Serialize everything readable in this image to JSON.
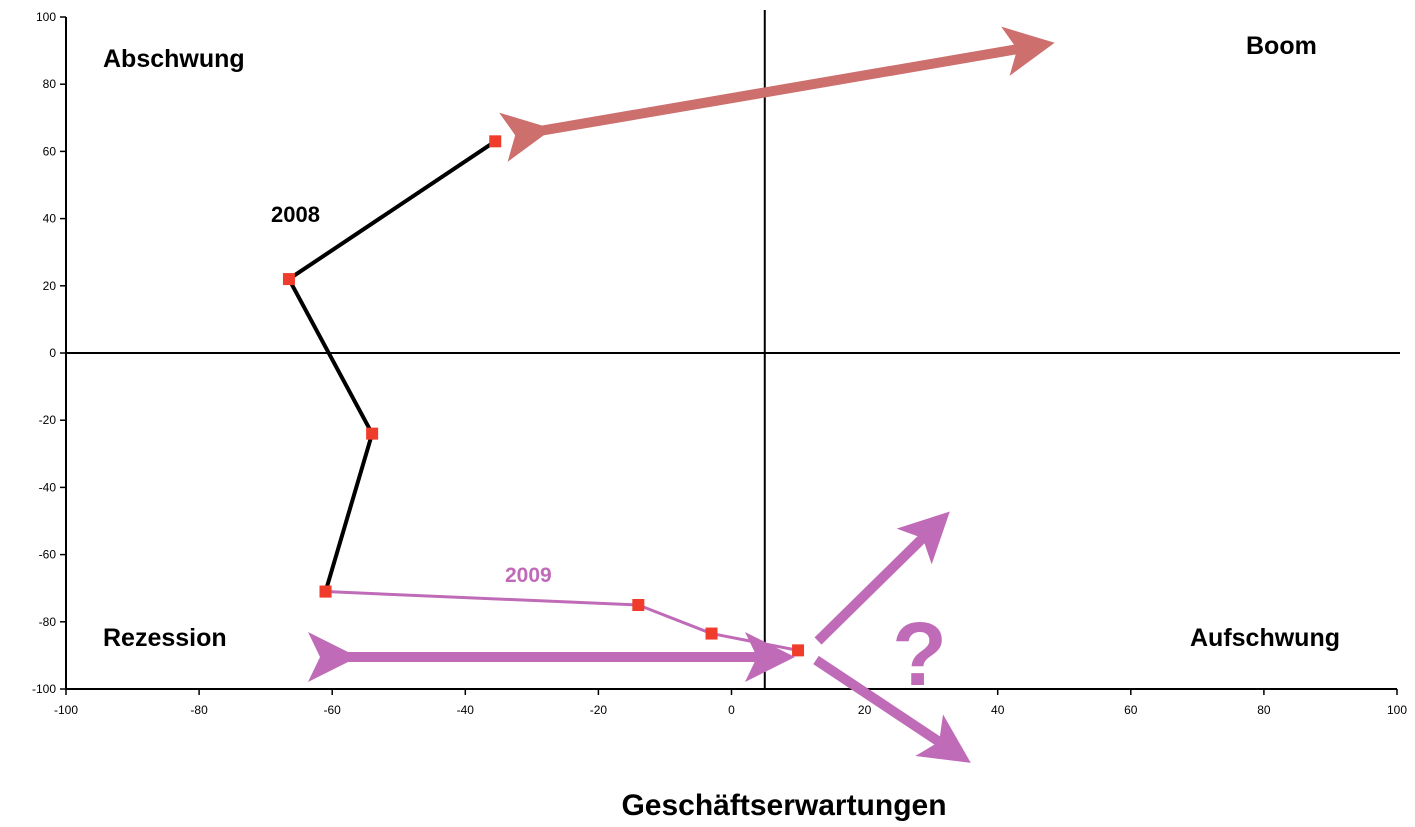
{
  "chart_data": {
    "type": "line",
    "xlabel": "Geschäftserwartungen",
    "ylabel": "",
    "xlim": [
      -100,
      100
    ],
    "ylim": [
      -100,
      100
    ],
    "x_ticks": [
      -100,
      -80,
      -60,
      -40,
      -20,
      0,
      20,
      40,
      60,
      80,
      100
    ],
    "y_ticks": [
      -100,
      -80,
      -60,
      -40,
      -20,
      0,
      20,
      40,
      60,
      80,
      100
    ],
    "crosshair": {
      "x": 5,
      "y": 0
    },
    "series": [
      {
        "name": "2008",
        "color": "#000000",
        "points": [
          [
            -35.5,
            63
          ],
          [
            -66.5,
            22
          ],
          [
            -54,
            -24
          ],
          [
            -61,
            -71
          ]
        ]
      },
      {
        "name": "2009",
        "color": "#c06bb8",
        "points": [
          [
            -61,
            -71
          ],
          [
            -14,
            -75
          ],
          [
            -3,
            -83.5
          ],
          [
            10,
            -88.5
          ]
        ]
      }
    ],
    "marker_color": "#f03c2a",
    "quadrants": {
      "top_left": "Abschwung",
      "top_right": "Boom",
      "bottom_left": "Rezession",
      "bottom_right": "Aufschwung"
    },
    "annotations": {
      "question_mark": "?",
      "arrow_color_boom": "#cd6f6d",
      "arrow_color_2009": "#c06bb8"
    }
  }
}
